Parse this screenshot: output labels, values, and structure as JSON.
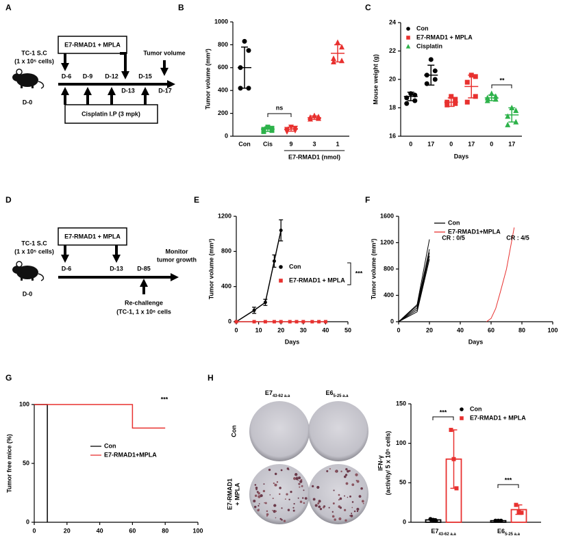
{
  "chart_data": [
    {
      "type": "dot",
      "panel": "B",
      "ylabel": "Tumor volume (mm³)",
      "ylim": [
        0,
        1000
      ],
      "yticks": [
        0,
        200,
        400,
        600,
        800,
        1000
      ],
      "categories": [
        "Con",
        "Cis",
        "9",
        "3",
        "1"
      ],
      "group_label": "E7-RMAD1 (nmol)",
      "groups": [
        {
          "color": "#000000",
          "marker": "circle",
          "values": [
            830,
            750,
            600,
            420,
            420
          ],
          "mean": 600,
          "error": 180
        },
        {
          "color": "#2db24a",
          "marker": "square",
          "values": [
            80,
            70,
            60,
            50,
            40
          ],
          "mean": 62,
          "error": 20
        },
        {
          "color": "#e8312f",
          "marker": "triangle-down",
          "values": [
            80,
            70,
            60,
            50,
            40
          ],
          "mean": 62,
          "error": 18
        },
        {
          "color": "#e8312f",
          "marker": "triangle",
          "values": [
            180,
            170,
            165,
            155,
            150
          ],
          "mean": 162,
          "error": 15
        },
        {
          "color": "#e8312f",
          "marker": "triangle",
          "values": [
            820,
            780,
            680,
            660,
            650
          ],
          "mean": 725,
          "error": 75
        }
      ],
      "annotations": [
        {
          "text": "ns",
          "color": "#000000"
        }
      ]
    },
    {
      "type": "dot",
      "panel": "C",
      "ylabel": "Mouse weight (g)",
      "xlabel": "Days",
      "ylim": [
        16,
        24
      ],
      "yticks": [
        16,
        18,
        20,
        22,
        24
      ],
      "categories": [
        "0",
        "17",
        "0",
        "17",
        "0",
        "17"
      ],
      "series": [
        {
          "name": "Con",
          "color": "#000000",
          "marker": "circle",
          "groups": [
            {
              "values": [
                19.0,
                18.9,
                18.7,
                18.5,
                18.3
              ],
              "mean": 18.8,
              "error": 0.3
            },
            {
              "values": [
                21.4,
                20.6,
                20.3,
                20.0,
                19.7
              ],
              "mean": 20.3,
              "error": 0.7
            }
          ]
        },
        {
          "name": "E7-RMAD1 + MPLA",
          "color": "#e8312f",
          "marker": "square",
          "groups": [
            {
              "values": [
                18.8,
                18.6,
                18.4,
                18.3,
                18.2
              ],
              "mean": 18.4,
              "error": 0.3
            },
            {
              "values": [
                20.3,
                20.2,
                19.8,
                18.8,
                18.4
              ],
              "mean": 19.5,
              "error": 0.8
            }
          ]
        },
        {
          "name": "Cisplatin",
          "color": "#2db24a",
          "marker": "triangle",
          "groups": [
            {
              "values": [
                19.0,
                18.8,
                18.7,
                18.6,
                18.5
              ],
              "mean": 18.7,
              "error": 0.2
            },
            {
              "values": [
                18.0,
                17.8,
                17.4,
                17.0,
                16.8
              ],
              "mean": 17.5,
              "error": 0.5
            }
          ]
        }
      ],
      "annotations": [
        {
          "text": "**",
          "color": "#000000"
        }
      ]
    },
    {
      "type": "line",
      "panel": "E",
      "ylabel": "Tumor volume (mm³)",
      "xlabel": "Days",
      "xlim": [
        0,
        50
      ],
      "xticks": [
        0,
        10,
        20,
        30,
        40,
        50
      ],
      "ylim": [
        0,
        1200
      ],
      "yticks": [
        0,
        400,
        800,
        1200
      ],
      "series": [
        {
          "name": "Con",
          "color": "#000000",
          "marker": "circle",
          "x": [
            0,
            8,
            13,
            17,
            20
          ],
          "values": [
            0,
            130,
            220,
            690,
            1040
          ],
          "error": [
            0,
            35,
            35,
            70,
            120
          ]
        },
        {
          "name": "E7-RMAD1 + MPLA",
          "color": "#e8312f",
          "marker": "square",
          "x": [
            0,
            8,
            13,
            17,
            20,
            24,
            27,
            30,
            34,
            37,
            40
          ],
          "values": [
            0,
            0,
            0,
            0,
            0,
            0,
            0,
            0,
            0,
            0,
            0
          ]
        }
      ],
      "annotations": [
        {
          "text": "***",
          "color": "#000000"
        }
      ]
    },
    {
      "type": "line",
      "panel": "F",
      "ylabel": "Tumor volume (mm³)",
      "xlabel": "Days",
      "xlim": [
        0,
        100
      ],
      "xticks": [
        0,
        20,
        40,
        60,
        80,
        100
      ],
      "ylim": [
        0,
        1600
      ],
      "yticks": [
        0,
        400,
        800,
        1200,
        1600
      ],
      "series": [
        {
          "name": "Con",
          "color": "#000000",
          "lines": [
            {
              "x": [
                0,
                12,
                20
              ],
              "values": [
                0,
                260,
                1250
              ]
            },
            {
              "x": [
                0,
                12,
                20
              ],
              "values": [
                0,
                240,
                1100
              ]
            },
            {
              "x": [
                0,
                12,
                20
              ],
              "values": [
                0,
                210,
                1050
              ]
            },
            {
              "x": [
                0,
                12,
                20
              ],
              "values": [
                0,
                180,
                1000
              ]
            },
            {
              "x": [
                0,
                12,
                20
              ],
              "values": [
                0,
                150,
                950
              ]
            }
          ]
        },
        {
          "name": "E7-RMAD1+MPLA",
          "color": "#e8312f",
          "lines": [
            {
              "x": [
                57,
                60,
                63,
                66,
                70,
                75
              ],
              "values": [
                0,
                50,
                200,
                450,
                800,
                1430
              ]
            }
          ]
        }
      ],
      "annotations": [
        {
          "text": "CR : 0/5",
          "color": "#000000"
        },
        {
          "text": "CR : 4/5",
          "color": "#e8312f"
        }
      ]
    },
    {
      "type": "line",
      "panel": "G",
      "ylabel": "Tumor free mice (%)",
      "xlabel": "Days",
      "xlim": [
        0,
        100
      ],
      "xticks": [
        0,
        20,
        40,
        60,
        80,
        100
      ],
      "ylim": [
        0,
        100
      ],
      "yticks": [
        0,
        50,
        100
      ],
      "series": [
        {
          "name": "Con",
          "color": "#000000",
          "x": [
            0,
            8,
            8
          ],
          "values": [
            100,
            100,
            0
          ]
        },
        {
          "name": "E7-RMAD1+MPLA",
          "color": "#e8312f",
          "x": [
            0,
            60,
            60,
            80
          ],
          "values": [
            100,
            100,
            80,
            80
          ]
        }
      ],
      "annotations": [
        {
          "text": "***",
          "color": "#1a7a2e"
        }
      ]
    },
    {
      "type": "bar",
      "panel": "H",
      "ylabel": [
        "IFN-γ",
        "(activity/ 5 x 10⁵ cells)"
      ],
      "ylim": [
        0,
        150
      ],
      "yticks": [
        0,
        50,
        100,
        150
      ],
      "categories": [
        {
          "main": "E7",
          "sub": "43-62 a.a"
        },
        {
          "main": "E6",
          "sub": "5-25 a.a"
        }
      ],
      "series": [
        {
          "name": "Con",
          "color": "#000000",
          "marker": "circle",
          "values": [
            3,
            2
          ],
          "error": [
            1.5,
            0.5
          ],
          "points": [
            [
              4,
              3,
              2
            ],
            [
              2,
              2,
              2
            ]
          ]
        },
        {
          "name": "E7-RMAD1 + MPLA",
          "color": "#e8312f",
          "marker": "square",
          "values": [
            80,
            16
          ],
          "error": [
            37,
            6
          ],
          "points": [
            [
              117,
              80,
              43
            ],
            [
              22,
              13,
              12
            ]
          ]
        }
      ],
      "annotations": [
        {
          "text": "***",
          "color": "#000000"
        },
        {
          "text": "***",
          "color": "#000000"
        }
      ]
    }
  ],
  "diagrams": {
    "a": {
      "panel": "A",
      "treatment": "E7-RMAD1 + MPLA",
      "injection": "TC-1 S.C",
      "cells": "(1 x 10⁵ cells)",
      "day0": "D-0",
      "days": [
        "D-6",
        "D-9",
        "D-12",
        "D-13",
        "D-15",
        "D-17"
      ],
      "readout": "Tumor volume",
      "cisplatin": "Cisplatin I.P (3 mpk)"
    },
    "d": {
      "panel": "D",
      "treatment": "E7-RMAD1 + MPLA",
      "injection": "TC-1 S.C",
      "cells": "(1 x 10⁵ cells)",
      "day0": "D-0",
      "days": [
        "D-6",
        "D-13",
        "D-85"
      ],
      "readout": [
        "Monitor",
        "tumor growth"
      ],
      "rechallenge": [
        "Re-challenge",
        "(TC-1, 1 x 10⁶ cells"
      ]
    }
  },
  "plates": {
    "columns": [
      {
        "main": "E7",
        "sub": "43-62 a.a"
      },
      {
        "main": "E6",
        "sub": "5-25 a.a"
      }
    ],
    "rows": [
      [
        "Con"
      ],
      [
        "E7-RMAD1",
        "+ MPLA"
      ]
    ]
  }
}
